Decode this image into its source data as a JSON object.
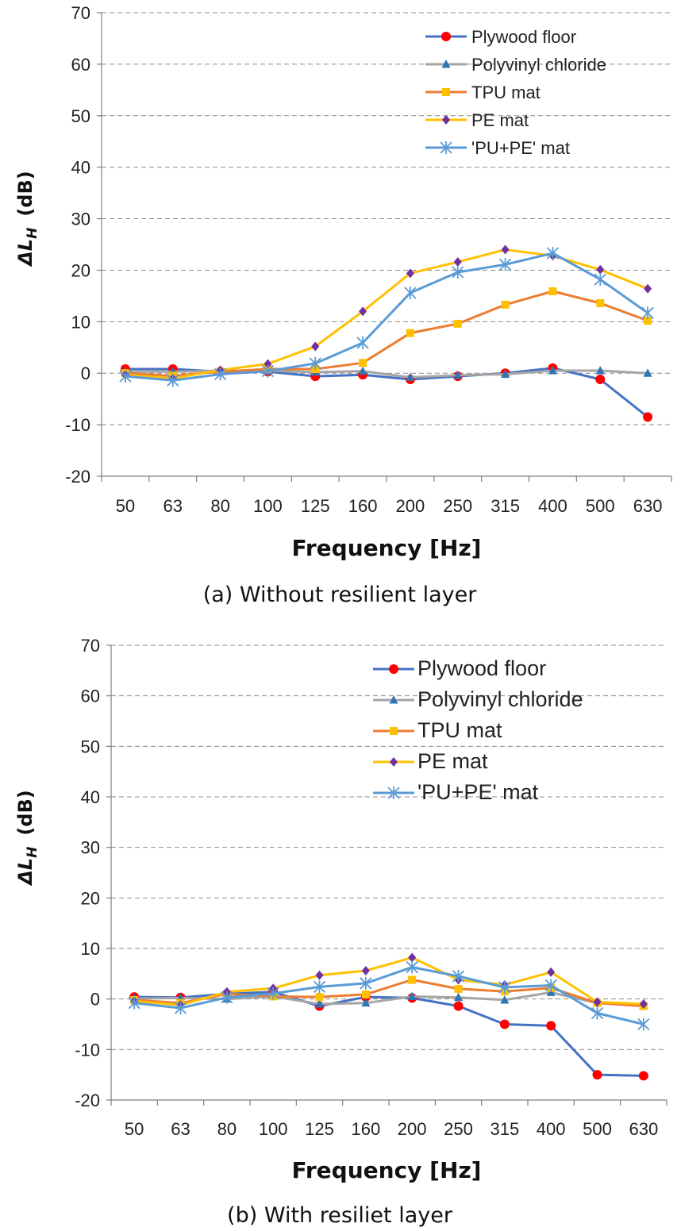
{
  "chart_data": [
    {
      "type": "line",
      "caption": "(a) Without resilient layer",
      "xlabel": "Frequency [Hz]",
      "ylabel_main": "ΔL",
      "ylabel_sub": "H",
      "ylabel_unit": "(dB)",
      "ylim": [
        -20,
        70
      ],
      "yticks": [
        -20,
        -10,
        0,
        10,
        20,
        30,
        40,
        50,
        60,
        70
      ],
      "grid": "horizontal dashed",
      "legend": "top-right",
      "categories": [
        "50",
        "63",
        "80",
        "100",
        "125",
        "160",
        "200",
        "250",
        "315",
        "400",
        "500",
        "630"
      ],
      "series": [
        {
          "name": "Plywood floor",
          "color": "#4472C4",
          "marker": "circle",
          "marker_color": "#FF0000",
          "values": [
            0.8,
            0.8,
            0.3,
            0.3,
            -0.6,
            -0.3,
            -1.2,
            -0.6,
            0.0,
            1.0,
            -1.2,
            -8.5
          ]
        },
        {
          "name": "Polyvinyl chloride",
          "color": "#A5A5A5",
          "marker": "triangle",
          "marker_color": "#2E75B6",
          "values": [
            0.3,
            0.3,
            0.5,
            0.5,
            0.2,
            0.4,
            -0.8,
            -0.4,
            -0.2,
            0.5,
            0.5,
            0.0
          ]
        },
        {
          "name": "TPU mat",
          "color": "#ED7D31",
          "marker": "square",
          "marker_color": "#FFC000",
          "values": [
            0.0,
            -0.5,
            0.3,
            0.8,
            0.8,
            2.0,
            7.8,
            9.6,
            13.3,
            15.9,
            13.6,
            10.2
          ]
        },
        {
          "name": "PE mat",
          "color": "#FFC000",
          "marker": "diamond",
          "marker_color": "#7030A0",
          "values": [
            -0.3,
            -1.0,
            0.6,
            1.8,
            5.2,
            12.0,
            19.4,
            21.6,
            24.0,
            22.8,
            20.1,
            16.4
          ]
        },
        {
          "name": "'PU+PE' mat",
          "color": "#5B9BD5",
          "marker": "asterisk",
          "marker_color": "#5B9BD5",
          "values": [
            -0.6,
            -1.4,
            -0.2,
            0.4,
            1.9,
            5.9,
            15.6,
            19.6,
            21.1,
            23.3,
            18.2,
            11.7
          ]
        }
      ]
    },
    {
      "type": "line",
      "caption": "(b) With resiliet layer",
      "xlabel": "Frequency [Hz]",
      "ylabel_main": "ΔL",
      "ylabel_sub": "H",
      "ylabel_unit": "(dB)",
      "ylim": [
        -20,
        70
      ],
      "yticks": [
        -20,
        -10,
        0,
        10,
        20,
        30,
        40,
        50,
        60,
        70
      ],
      "grid": "horizontal dashed",
      "legend": "top-right",
      "categories": [
        "50",
        "63",
        "80",
        "100",
        "125",
        "160",
        "200",
        "250",
        "315",
        "400",
        "500",
        "630"
      ],
      "series": [
        {
          "name": "Plywood floor",
          "color": "#4472C4",
          "marker": "circle",
          "marker_color": "#FF0000",
          "values": [
            0.4,
            0.3,
            1.0,
            1.4,
            -1.4,
            0.4,
            0.2,
            -1.4,
            -5.0,
            -5.3,
            -15.0,
            -15.2
          ]
        },
        {
          "name": "Polyvinyl chloride",
          "color": "#A5A5A5",
          "marker": "triangle",
          "marker_color": "#2E75B6",
          "values": [
            0.1,
            0.2,
            0.0,
            0.5,
            -1.0,
            -0.8,
            0.5,
            0.3,
            -0.2,
            1.3,
            -0.8,
            -1.2
          ]
        },
        {
          "name": "TPU mat",
          "color": "#ED7D31",
          "marker": "square",
          "marker_color": "#FFC000",
          "values": [
            -0.2,
            -0.8,
            1.0,
            0.5,
            0.4,
            0.9,
            3.8,
            2.0,
            1.5,
            2.2,
            -0.8,
            -1.4
          ]
        },
        {
          "name": "PE mat",
          "color": "#FFC000",
          "marker": "diamond",
          "marker_color": "#7030A0",
          "values": [
            -0.4,
            -1.2,
            1.4,
            2.1,
            4.7,
            5.6,
            8.2,
            3.8,
            2.8,
            5.3,
            -0.6,
            -1.0
          ]
        },
        {
          "name": "'PU+PE' mat",
          "color": "#5B9BD5",
          "marker": "asterisk",
          "marker_color": "#5B9BD5",
          "values": [
            -0.8,
            -1.8,
            0.3,
            1.1,
            2.4,
            3.1,
            6.3,
            4.5,
            2.3,
            2.7,
            -2.8,
            -5.0
          ]
        }
      ]
    }
  ]
}
